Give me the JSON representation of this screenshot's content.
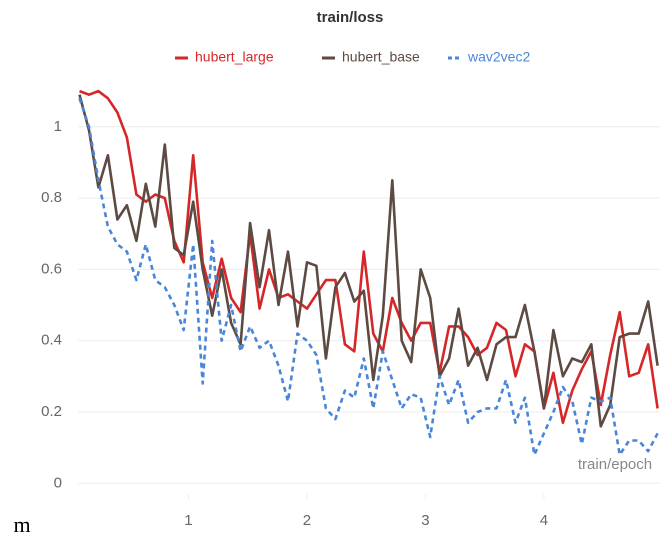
{
  "chart_data": {
    "type": "line",
    "title": "train/loss",
    "x": [
      0.08,
      0.16,
      0.24,
      0.32,
      0.4,
      0.48,
      0.56,
      0.64,
      0.72,
      0.8,
      0.88,
      0.96,
      1.04,
      1.12,
      1.2,
      1.28,
      1.36,
      1.44,
      1.52,
      1.6,
      1.68,
      1.76,
      1.84,
      1.92,
      2.0,
      2.08,
      2.16,
      2.24,
      2.32,
      2.4,
      2.48,
      2.56,
      2.64,
      2.72,
      2.8,
      2.88,
      2.96,
      3.04,
      3.12,
      3.2,
      3.28,
      3.36,
      3.44,
      3.52,
      3.6,
      3.68,
      3.76,
      3.84,
      3.92,
      4.0,
      4.08,
      4.16,
      4.24,
      4.32,
      4.4,
      4.48,
      4.56,
      4.64,
      4.72,
      4.8,
      4.88,
      4.96
    ],
    "series": [
      {
        "name": "hubert_large",
        "color": "#d62728",
        "style": "solid",
        "values": [
          1.1,
          1.09,
          1.1,
          1.08,
          1.04,
          0.97,
          0.81,
          0.79,
          0.81,
          0.8,
          0.68,
          0.62,
          0.92,
          0.62,
          0.52,
          0.63,
          0.52,
          0.48,
          0.7,
          0.49,
          0.6,
          0.52,
          0.53,
          0.51,
          0.49,
          0.53,
          0.57,
          0.57,
          0.39,
          0.37,
          0.65,
          0.42,
          0.37,
          0.52,
          0.45,
          0.4,
          0.45,
          0.45,
          0.31,
          0.44,
          0.44,
          0.41,
          0.36,
          0.38,
          0.45,
          0.43,
          0.3,
          0.39,
          0.37,
          0.21,
          0.31,
          0.17,
          0.26,
          0.32,
          0.37,
          0.22,
          0.36,
          0.48,
          0.3,
          0.31,
          0.39,
          0.21
        ]
      },
      {
        "name": "hubert_base",
        "color": "#5d4a42",
        "style": "solid",
        "values": [
          1.09,
          0.99,
          0.83,
          0.92,
          0.74,
          0.78,
          0.68,
          0.84,
          0.72,
          0.95,
          0.66,
          0.64,
          0.79,
          0.6,
          0.47,
          0.6,
          0.45,
          0.39,
          0.73,
          0.55,
          0.71,
          0.5,
          0.65,
          0.44,
          0.62,
          0.61,
          0.35,
          0.55,
          0.59,
          0.51,
          0.54,
          0.29,
          0.47,
          0.85,
          0.4,
          0.34,
          0.6,
          0.52,
          0.3,
          0.35,
          0.49,
          0.33,
          0.38,
          0.29,
          0.39,
          0.41,
          0.41,
          0.5,
          0.37,
          0.21,
          0.43,
          0.3,
          0.35,
          0.34,
          0.39,
          0.16,
          0.22,
          0.41,
          0.42,
          0.42,
          0.51,
          0.33
        ]
      },
      {
        "name": "wav2vec2",
        "color": "#4a86d8",
        "style": "dashed",
        "values": [
          1.08,
          1.0,
          0.85,
          0.72,
          0.67,
          0.65,
          0.57,
          0.67,
          0.57,
          0.55,
          0.5,
          0.43,
          0.67,
          0.28,
          0.68,
          0.4,
          0.5,
          0.37,
          0.44,
          0.38,
          0.4,
          0.33,
          0.23,
          0.42,
          0.4,
          0.36,
          0.21,
          0.18,
          0.26,
          0.24,
          0.35,
          0.21,
          0.37,
          0.29,
          0.21,
          0.25,
          0.24,
          0.13,
          0.3,
          0.22,
          0.29,
          0.17,
          0.2,
          0.21,
          0.21,
          0.29,
          0.17,
          0.24,
          0.08,
          0.14,
          0.2,
          0.27,
          0.23,
          0.11,
          0.24,
          0.23,
          0.24,
          0.08,
          0.12,
          0.12,
          0.09,
          0.14
        ]
      }
    ],
    "xlim": [
      0.07,
      4.98
    ],
    "xticks": [
      1,
      2,
      3,
      4
    ],
    "ylim": [
      -0.03,
      1.12
    ],
    "yticks": [
      0,
      0.2,
      0.4,
      0.6,
      0.8,
      1
    ],
    "grid": true,
    "legend": "top",
    "annotations": [
      "train/epoch",
      "m"
    ]
  }
}
